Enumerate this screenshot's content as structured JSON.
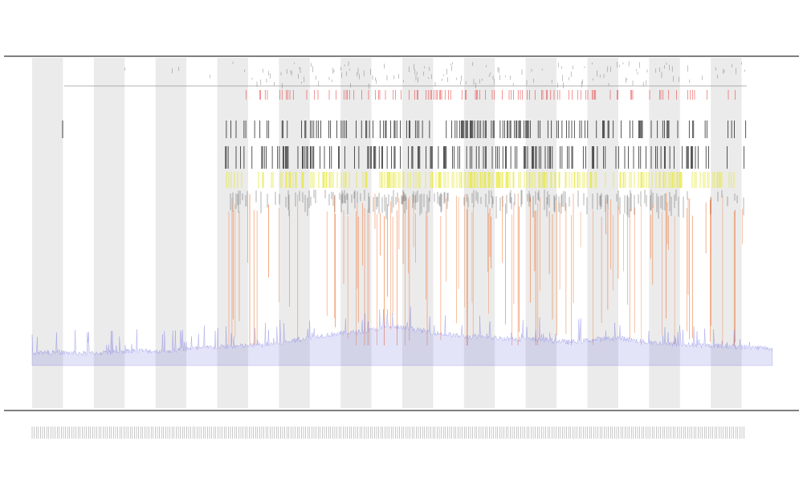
{
  "chart_data": {
    "type": "area",
    "title": "",
    "subtitle_lines": [
      "",
      ""
    ],
    "xlabel": "",
    "ylabel": "",
    "grid": false,
    "legend": "none",
    "alternating_band_count": 24,
    "colors": {
      "background": "#ffffff",
      "band": "#ebebeb",
      "coverage": "#6a6ae0",
      "red_marks": "#e8292a",
      "orange_marks": "#ee6a22",
      "yellow_marks": "#e6e626",
      "black_marks": "#111111",
      "axis": "#555555",
      "header_rule": "#9a9a9a"
    },
    "tracks": [
      {
        "name": "annotation-ticks",
        "color": "#444444"
      },
      {
        "name": "red-variant-ticks",
        "color": "#e8292a"
      },
      {
        "name": "black-feature-row-1",
        "color": "#111111"
      },
      {
        "name": "black-feature-row-2",
        "color": "#111111"
      },
      {
        "name": "yellow-feature-row",
        "color": "#e6e626"
      },
      {
        "name": "orange-signal-lines",
        "color": "#ee6a22"
      },
      {
        "name": "coverage-area",
        "color": "#6a6ae0"
      }
    ],
    "left_track_labels": [
      "",
      "",
      "",
      ""
    ],
    "x_tick_labels": [],
    "coverage_profile": {
      "description_values_relative": [
        0.1,
        0.1,
        0.09,
        0.1,
        0.12,
        0.11,
        0.13,
        0.15,
        0.16,
        0.17,
        0.2,
        0.25,
        0.28,
        0.3,
        0.35,
        0.32,
        0.28,
        0.25,
        0.24,
        0.23,
        0.22,
        0.2,
        0.22,
        0.24,
        0.2,
        0.18,
        0.17,
        0.16,
        0.15,
        0.14
      ]
    }
  }
}
